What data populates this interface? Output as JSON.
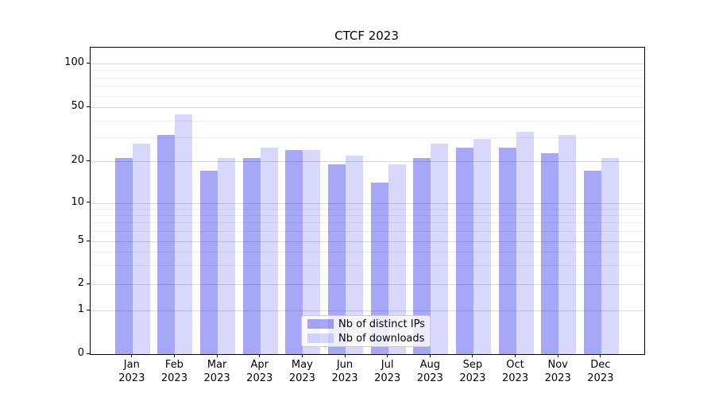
{
  "figure": {
    "background": "#ffffff"
  },
  "chart_data": {
    "type": "bar",
    "title": "CTCF 2023",
    "categories": [
      "Jan",
      "Feb",
      "Mar",
      "Apr",
      "May",
      "Jun",
      "Jul",
      "Aug",
      "Sep",
      "Oct",
      "Nov",
      "Dec"
    ],
    "category_year": "2023",
    "series": [
      {
        "name": "Nb of distinct IPs",
        "color": "rgba(10,10,235,0.36)",
        "values": [
          21,
          31,
          17,
          21,
          24,
          19,
          14,
          21,
          25,
          25,
          23,
          17
        ]
      },
      {
        "name": "Nb of downloads",
        "color": "rgba(10,10,235,0.16)",
        "values": [
          27,
          44,
          21,
          25,
          24,
          22,
          19,
          27,
          29,
          33,
          31,
          21
        ]
      }
    ],
    "xlabel": "",
    "ylabel": "",
    "yscale": "symlog",
    "ylim": [
      0,
      120
    ],
    "y_major_ticks": [
      0,
      1,
      2,
      5,
      10,
      20,
      50,
      100
    ],
    "y_minor_gridlines": [
      3,
      4,
      6,
      7,
      8,
      9,
      30,
      40,
      60,
      70,
      80,
      90
    ],
    "grid": true,
    "legend_position": "lower center",
    "accent_colors": {
      "major_grid": "#d8d8d8",
      "minor_grid": "#eeeeee",
      "spine": "#000000"
    }
  }
}
